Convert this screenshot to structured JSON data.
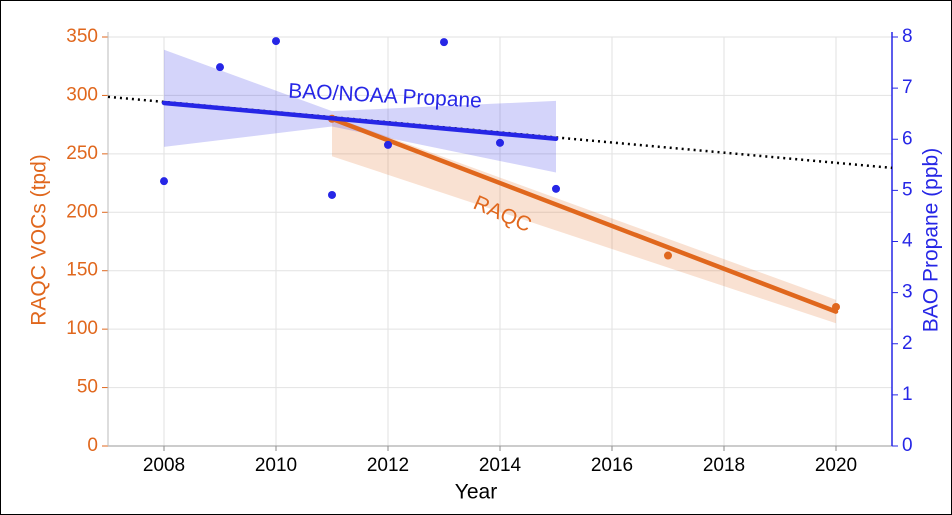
{
  "chart_data": {
    "type": "scatter",
    "x_label": "Year",
    "y_label": "RAQC VOCs (tpd)",
    "y2_label": "BAO Propane (ppb)",
    "xlim": [
      2007,
      2021
    ],
    "xticks": [
      2008,
      2010,
      2012,
      2014,
      2016,
      2018,
      2020
    ],
    "ylim": [
      0,
      350
    ],
    "yticks": [
      0,
      50,
      100,
      150,
      200,
      250,
      300,
      350
    ],
    "y2lim": [
      0,
      8
    ],
    "y2ticks": [
      0,
      1,
      2,
      3,
      4,
      5,
      6,
      7,
      8
    ],
    "grid": true,
    "series": [
      {
        "name": "RAQC",
        "color": "#e0671d",
        "axis": "y",
        "x": [
          2011,
          2017,
          2020
        ],
        "values": [
          280,
          163,
          119
        ],
        "fit": {
          "x": [
            2011,
            2020
          ],
          "values": [
            280,
            115
          ]
        },
        "band": {
          "x": [
            2011,
            2020
          ],
          "lower": [
            248,
            105
          ],
          "upper": [
            282,
            125
          ]
        }
      },
      {
        "name": "BAO/NOAA Propane",
        "color": "#2626e6",
        "axis": "y2",
        "x": [
          2008,
          2009,
          2010,
          2011,
          2012,
          2013,
          2014,
          2015
        ],
        "values": [
          5.18,
          7.41,
          7.92,
          4.91,
          5.89,
          7.9,
          5.93,
          5.03
        ],
        "fit": {
          "x": [
            2008,
            2015
          ],
          "values": [
            6.71,
            6.01
          ]
        },
        "band": {
          "x": [
            2008,
            2011,
            2015
          ],
          "lower": [
            5.85,
            6.25,
            5.35
          ],
          "upper": [
            7.75,
            6.55,
            6.75
          ]
        },
        "extension": {
          "x": [
            2007,
            2021
          ],
          "values": [
            6.83,
            5.44
          ],
          "color": "#000000"
        }
      }
    ]
  }
}
